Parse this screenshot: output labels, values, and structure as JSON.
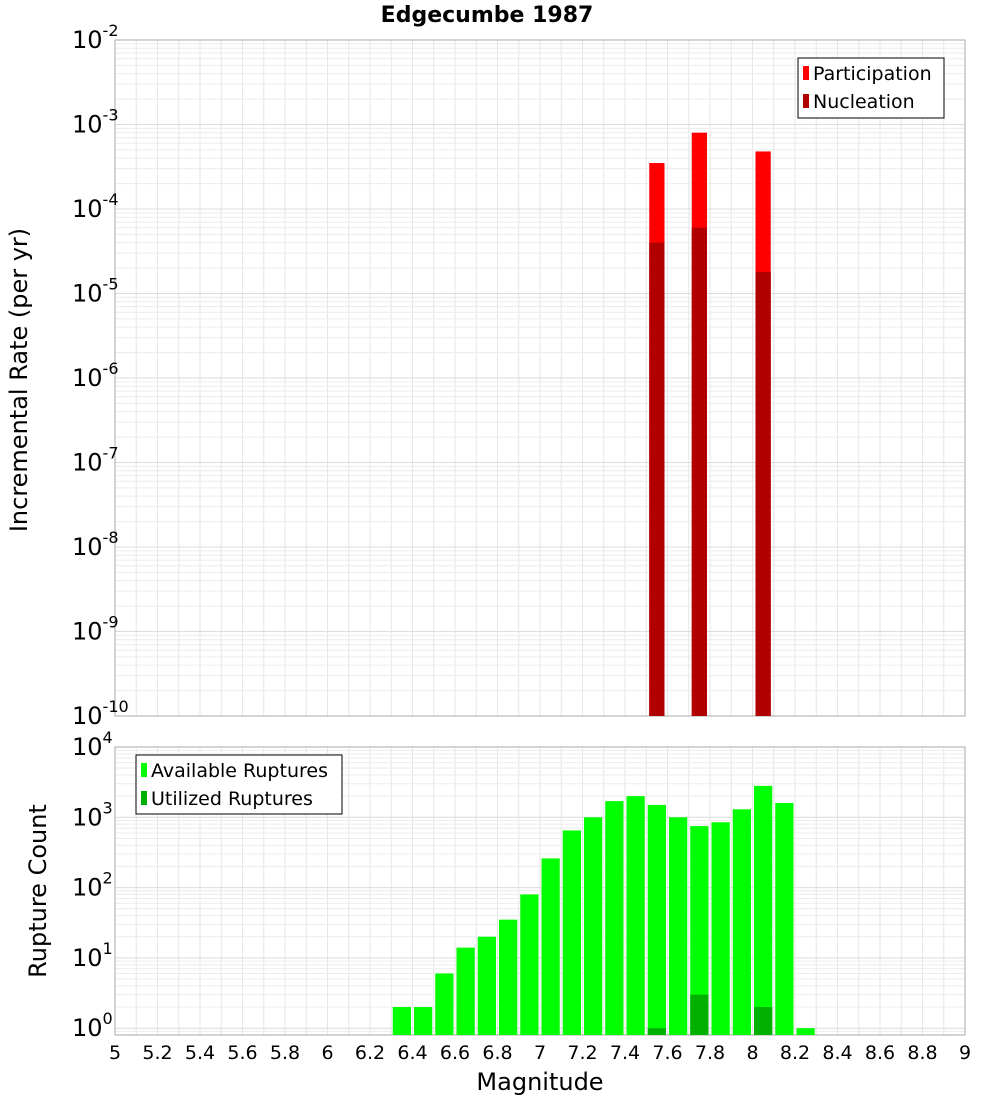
{
  "chart_data": [
    {
      "type": "bar",
      "title": "Edgecumbe 1987",
      "ylabel": "Incremental Rate (per yr)",
      "xlabel": "",
      "xlim": [
        5,
        9
      ],
      "ylim": [
        1e-10,
        0.01
      ],
      "yscale": "log",
      "bar_width": 0.1,
      "y_ticks": [
        {
          "base": "10",
          "exp": "-10",
          "value": 1e-10
        },
        {
          "base": "10",
          "exp": "-9",
          "value": 1e-09
        },
        {
          "base": "10",
          "exp": "-8",
          "value": 1e-08
        },
        {
          "base": "10",
          "exp": "-7",
          "value": 1e-07
        },
        {
          "base": "10",
          "exp": "-6",
          "value": 1e-06
        },
        {
          "base": "10",
          "exp": "-5",
          "value": 1e-05
        },
        {
          "base": "10",
          "exp": "-4",
          "value": 0.0001
        },
        {
          "base": "10",
          "exp": "-3",
          "value": 0.001
        },
        {
          "base": "10",
          "exp": "-2",
          "value": 0.01
        }
      ],
      "legend_position": "top-right",
      "series": [
        {
          "name": "Participation",
          "color": "#ff0000",
          "x": [
            7.55,
            7.75,
            8.05
          ],
          "values": [
            0.00035,
            0.0008,
            0.00048
          ]
        },
        {
          "name": "Nucleation",
          "color": "#b00000",
          "x": [
            7.55,
            7.75,
            8.05
          ],
          "values": [
            4e-05,
            6e-05,
            1.8e-05
          ]
        }
      ],
      "grid": true
    },
    {
      "type": "bar",
      "title": "",
      "ylabel": "Rupture Count",
      "xlabel": "Magnitude",
      "xlim": [
        5,
        9
      ],
      "ylim": [
        0.8,
        10000
      ],
      "yscale": "log",
      "bar_width": 0.1,
      "x_ticks": [
        "5",
        "5.2",
        "5.4",
        "5.6",
        "5.8",
        "6",
        "6.2",
        "6.4",
        "6.6",
        "6.8",
        "7",
        "7.2",
        "7.4",
        "7.6",
        "7.8",
        "8",
        "8.2",
        "8.4",
        "8.6",
        "8.8",
        "9"
      ],
      "y_ticks": [
        {
          "base": "10",
          "exp": "0",
          "value": 1
        },
        {
          "base": "10",
          "exp": "1",
          "value": 10
        },
        {
          "base": "10",
          "exp": "2",
          "value": 100
        },
        {
          "base": "10",
          "exp": "3",
          "value": 1000
        },
        {
          "base": "10",
          "exp": "4",
          "value": 10000
        }
      ],
      "legend_position": "top-left",
      "series": [
        {
          "name": "Available Ruptures",
          "color": "#00ff00",
          "x": [
            6.35,
            6.45,
            6.55,
            6.65,
            6.75,
            6.85,
            6.95,
            7.05,
            7.15,
            7.25,
            7.35,
            7.45,
            7.55,
            7.65,
            7.75,
            7.85,
            7.95,
            8.05,
            8.15,
            8.25
          ],
          "values": [
            2,
            2,
            6,
            14,
            20,
            35,
            80,
            260,
            650,
            1000,
            1700,
            2000,
            1500,
            1000,
            750,
            850,
            1300,
            2800,
            1600,
            1
          ]
        },
        {
          "name": "Utilized Ruptures",
          "color": "#00b000",
          "x": [
            7.55,
            7.75,
            8.05
          ],
          "values": [
            1,
            3,
            2
          ]
        }
      ],
      "grid": true
    }
  ]
}
